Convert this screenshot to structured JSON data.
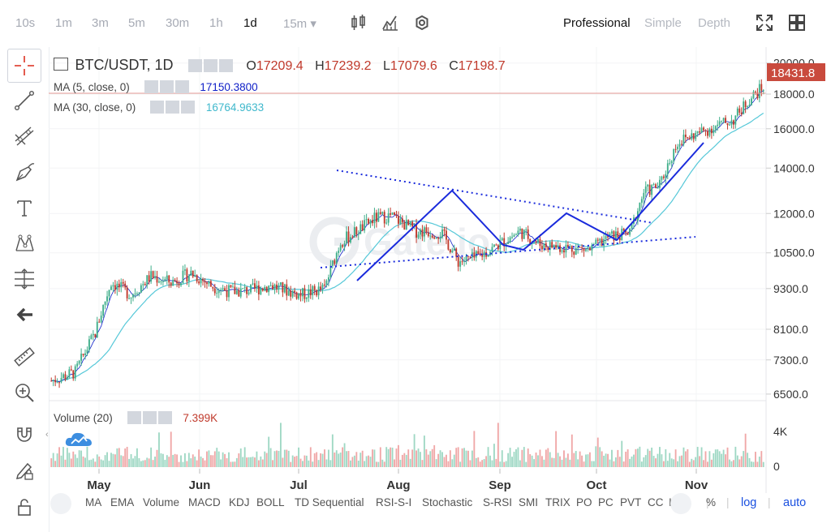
{
  "intervals": [
    "10s",
    "1m",
    "3m",
    "5m",
    "30m",
    "1h",
    "1d",
    "15m ▾"
  ],
  "active_interval": "1d",
  "modes": [
    "Professional",
    "Simple",
    "Depth"
  ],
  "symbol": "BTC/USDT",
  "timeframe": "1D",
  "ohlc": {
    "o_label": "O",
    "o": "17209.4",
    "h_label": "H",
    "h": "17239.2",
    "l_label": "L",
    "l": "17079.6",
    "c_label": "C",
    "c": "17198.7"
  },
  "ma5": {
    "label": "MA (5, close, 0)",
    "value": "17150.3800"
  },
  "ma30": {
    "label": "MA (30, close, 0)",
    "value": "16764.9633"
  },
  "volume": {
    "label": "Volume (20)",
    "value": "7.399K"
  },
  "last_price": "18431.8",
  "watermark": "Gate.io",
  "price_axis": [
    "20000.0",
    "18000.0",
    "16000.0",
    "14000.0",
    "12000.0",
    "10500.0",
    "9300.0",
    "8100.0",
    "7300.0",
    "6500.0"
  ],
  "volume_axis": [
    "4K",
    "0"
  ],
  "time_axis": [
    "May",
    "Jun",
    "Jul",
    "Aug",
    "Sep",
    "Oct",
    "Nov"
  ],
  "indicators": [
    "MA",
    "EMA",
    "Volume",
    "MACD",
    "KDJ",
    "BOLL",
    "TD Sequential",
    "RSI-S-I",
    "Stochastic",
    "S-RSI",
    "SMI",
    "TRIX",
    "PO",
    "PC",
    "PVT",
    "CC",
    "I"
  ],
  "bottom_right": {
    "percent": "%",
    "log": "log",
    "auto": "auto"
  },
  "tools": [
    "crosshair-icon",
    "trend-line-icon",
    "fib-icon",
    "brush-icon",
    "text-icon",
    "pattern-icon",
    "measure-icon",
    "back-arrow-icon",
    "ruler-icon",
    "zoom-in-icon",
    "magnet-icon",
    "lock-edit-icon",
    "lock-icon"
  ],
  "colors": {
    "up": "#3fae8a",
    "down": "#c0392b",
    "ma5": "#1020c8",
    "ma30": "#56c8d8",
    "pattern": "#1a2bdc",
    "vol_up": "#9fd8c4",
    "vol_down": "#f0a7a7",
    "log_active": "#1a50e0"
  }
}
